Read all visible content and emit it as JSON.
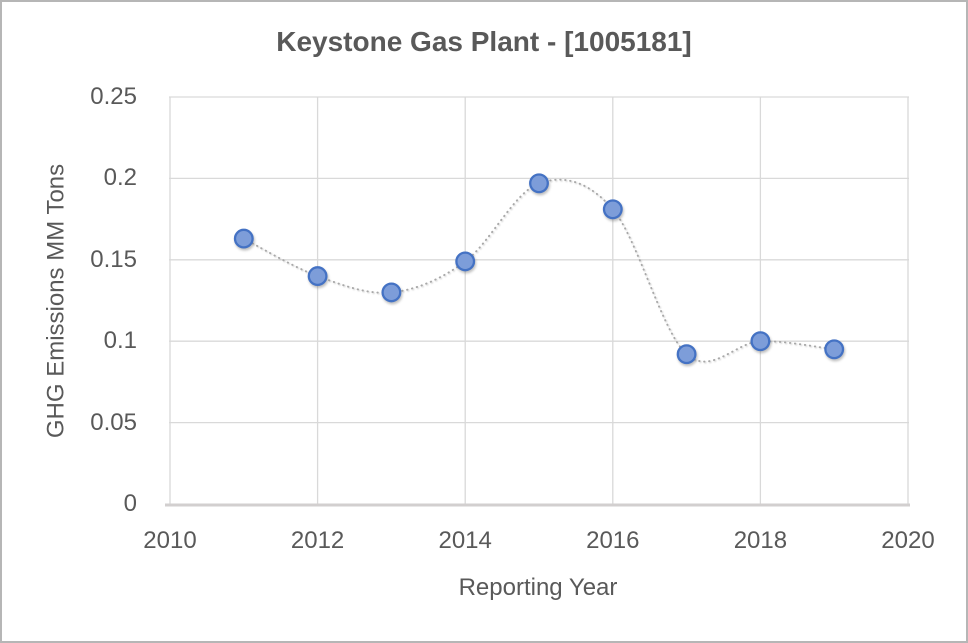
{
  "chart_data": {
    "type": "scatter",
    "title": "Keystone Gas Plant - [1005181]",
    "xlabel": "Reporting Year",
    "ylabel": "GHG Emissions MM Tons",
    "x": [
      2011,
      2012,
      2013,
      2014,
      2015,
      2016,
      2017,
      2018,
      2019
    ],
    "values": [
      0.163,
      0.14,
      0.13,
      0.149,
      0.197,
      0.181,
      0.092,
      0.1,
      0.095
    ],
    "xlim": [
      2010,
      2020
    ],
    "ylim": [
      0,
      0.25
    ],
    "xticks": {
      "values": [
        2010,
        2012,
        2014,
        2016,
        2018,
        2020
      ],
      "labels": [
        "2010",
        "2012",
        "2014",
        "2016",
        "2018",
        "2020"
      ]
    },
    "yticks": {
      "values": [
        0,
        0.05,
        0.1,
        0.15,
        0.2,
        0.25
      ],
      "labels": [
        "0",
        "0.05",
        "0.1",
        "0.15",
        "0.2",
        "0.25"
      ]
    },
    "grid": true,
    "legend": "none",
    "line_style": "dotted-smooth",
    "colors": {
      "marker_fill": "#7D9DD9",
      "marker_stroke": "#4472C4",
      "line": "#A8A8A8",
      "gridline": "#D9D9D9",
      "axis_line": "#D2CFCF",
      "text": "#595959"
    }
  }
}
